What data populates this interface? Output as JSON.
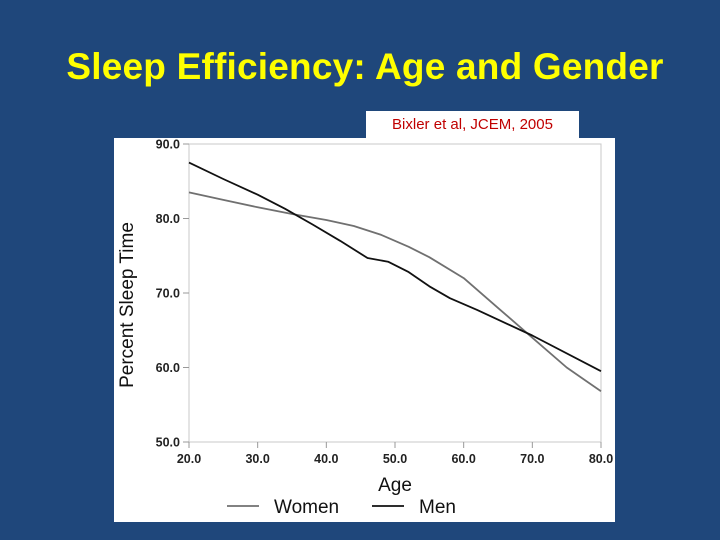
{
  "slide": {
    "title": "Sleep Efficiency: Age and Gender",
    "citation": "Bixler et al, JCEM, 2005"
  },
  "chart_data": {
    "type": "line",
    "title": "",
    "xlabel": "Age",
    "ylabel": "Percent Sleep Time",
    "xlim": [
      20,
      80
    ],
    "ylim": [
      50,
      90
    ],
    "x_ticks": [
      "20.0",
      "30.0",
      "40.0",
      "50.0",
      "60.0",
      "70.0",
      "80.0"
    ],
    "y_ticks": [
      "50.0",
      "60.0",
      "70.0",
      "80.0",
      "90.0"
    ],
    "grid": false,
    "legend_position": "bottom",
    "series": [
      {
        "name": "Women",
        "color": "#707070",
        "x": [
          20,
          25,
          30,
          35,
          40,
          44,
          48,
          52,
          55,
          60,
          65,
          70,
          75,
          80
        ],
        "y": [
          83.5,
          82.5,
          81.5,
          80.6,
          79.8,
          79.0,
          77.8,
          76.2,
          74.8,
          72.0,
          68.0,
          64.0,
          60.0,
          56.8
        ]
      },
      {
        "name": "Men",
        "color": "#111111",
        "x": [
          20,
          25,
          30,
          34,
          38,
          42,
          46,
          49,
          52,
          55,
          58,
          62,
          70,
          80
        ],
        "y": [
          87.5,
          85.3,
          83.2,
          81.3,
          79.2,
          77.0,
          74.7,
          74.2,
          72.8,
          70.9,
          69.3,
          67.7,
          64.3,
          59.5
        ]
      }
    ]
  }
}
